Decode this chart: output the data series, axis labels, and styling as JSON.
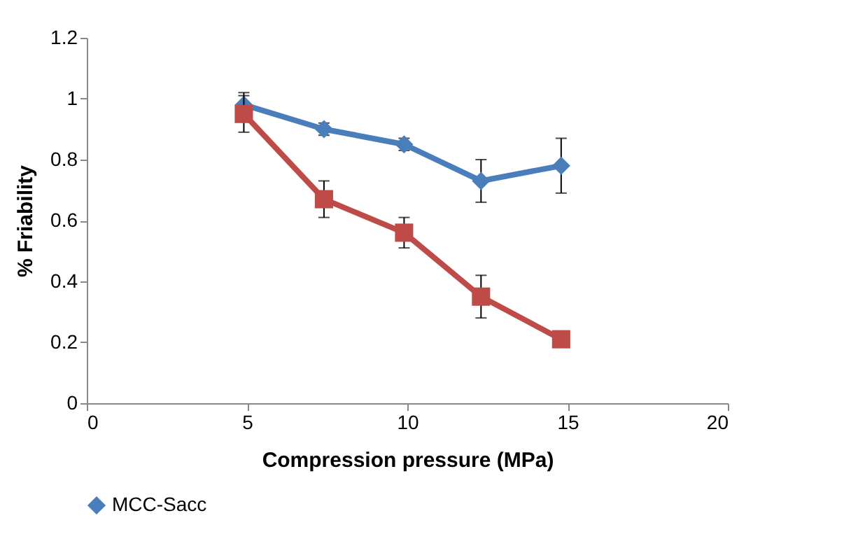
{
  "chart_data": {
    "type": "line",
    "xlabel": "Compression pressure (MPa)",
    "ylabel": "% Friability",
    "x": [
      4.9,
      7.4,
      9.9,
      12.3,
      14.8
    ],
    "series": [
      {
        "name": "MCC-Sacc",
        "color": "#4a7ebb",
        "marker": "diamond",
        "values": [
          0.98,
          0.9,
          0.85,
          0.73,
          0.78
        ],
        "errors": [
          0.04,
          0.02,
          0.02,
          0.07,
          0.09
        ]
      },
      {
        "color": "#be4b48",
        "marker": "square",
        "values": [
          0.95,
          0.67,
          0.56,
          0.35,
          0.21
        ],
        "errors": [
          0.06,
          0.06,
          0.05,
          0.07,
          null
        ]
      }
    ],
    "xlim": [
      0,
      20
    ],
    "xticks": [
      0,
      5,
      10,
      15,
      20
    ],
    "ylim": [
      0,
      1.2
    ],
    "yticks": [
      0,
      0.2,
      0.4,
      0.6,
      0.8,
      1,
      1.2
    ],
    "grid": false,
    "legend": "bottom",
    "line_style": "solid"
  }
}
